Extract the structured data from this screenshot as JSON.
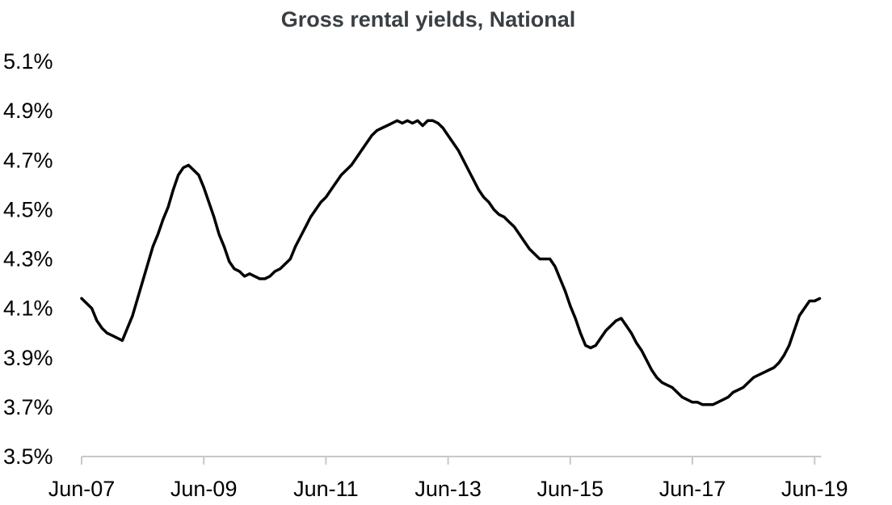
{
  "chart_data": {
    "type": "line",
    "title": "Gross rental yields, National",
    "xlabel": "",
    "ylabel": "",
    "ylim": [
      3.5,
      5.1
    ],
    "yticks": [
      "3.5%",
      "3.7%",
      "3.9%",
      "4.1%",
      "4.3%",
      "4.5%",
      "4.7%",
      "4.9%",
      "5.1%"
    ],
    "xticks": [
      "Jun-07",
      "Jun-09",
      "Jun-11",
      "Jun-13",
      "Jun-15",
      "Jun-17",
      "Jun-19"
    ],
    "grid": false,
    "legend": "none",
    "line_color": "#000000",
    "series": [
      {
        "x": [
          "2007-06",
          "2007-07",
          "2007-08",
          "2007-09",
          "2007-10",
          "2007-11",
          "2007-12",
          "2008-01",
          "2008-02",
          "2008-03",
          "2008-04",
          "2008-05",
          "2008-06",
          "2008-07",
          "2008-08",
          "2008-09",
          "2008-10",
          "2008-11",
          "2008-12",
          "2009-01",
          "2009-02",
          "2009-03",
          "2009-04",
          "2009-05",
          "2009-06",
          "2009-07",
          "2009-08",
          "2009-09",
          "2009-10",
          "2009-11",
          "2009-12",
          "2010-01",
          "2010-02",
          "2010-03",
          "2010-04",
          "2010-05",
          "2010-06",
          "2010-07",
          "2010-08",
          "2010-09",
          "2010-10",
          "2010-11",
          "2010-12",
          "2011-01",
          "2011-02",
          "2011-03",
          "2011-04",
          "2011-05",
          "2011-06",
          "2011-07",
          "2011-08",
          "2011-09",
          "2011-10",
          "2011-11",
          "2011-12",
          "2012-01",
          "2012-02",
          "2012-03",
          "2012-04",
          "2012-05",
          "2012-06",
          "2012-07",
          "2012-08",
          "2012-09",
          "2012-10",
          "2012-11",
          "2012-12",
          "2013-01",
          "2013-02",
          "2013-03",
          "2013-04",
          "2013-05",
          "2013-06",
          "2013-07",
          "2013-08",
          "2013-09",
          "2013-10",
          "2013-11",
          "2013-12",
          "2014-01",
          "2014-02",
          "2014-03",
          "2014-04",
          "2014-05",
          "2014-06",
          "2014-07",
          "2014-08",
          "2014-09",
          "2014-10",
          "2014-11",
          "2014-12",
          "2015-01",
          "2015-02",
          "2015-03",
          "2015-04",
          "2015-05",
          "2015-06",
          "2015-07",
          "2015-08",
          "2015-09",
          "2015-10",
          "2015-11",
          "2015-12",
          "2016-01",
          "2016-02",
          "2016-03",
          "2016-04",
          "2016-05",
          "2016-06",
          "2016-07",
          "2016-08",
          "2016-09",
          "2016-10",
          "2016-11",
          "2016-12",
          "2017-01",
          "2017-02",
          "2017-03",
          "2017-04",
          "2017-05",
          "2017-06",
          "2017-07",
          "2017-08",
          "2017-09",
          "2017-10",
          "2017-11",
          "2017-12",
          "2018-01",
          "2018-02",
          "2018-03",
          "2018-04",
          "2018-05",
          "2018-06",
          "2018-07",
          "2018-08",
          "2018-09",
          "2018-10",
          "2018-11",
          "2018-12",
          "2019-01",
          "2019-02",
          "2019-03",
          "2019-04",
          "2019-05",
          "2019-06",
          "2019-07"
        ],
        "values": [
          4.14,
          4.12,
          4.1,
          4.05,
          4.02,
          4.0,
          3.99,
          3.98,
          3.97,
          4.02,
          4.07,
          4.14,
          4.21,
          4.28,
          4.35,
          4.4,
          4.46,
          4.51,
          4.58,
          4.64,
          4.67,
          4.68,
          4.66,
          4.64,
          4.59,
          4.53,
          4.47,
          4.4,
          4.35,
          4.29,
          4.26,
          4.25,
          4.23,
          4.24,
          4.23,
          4.22,
          4.22,
          4.23,
          4.25,
          4.26,
          4.28,
          4.3,
          4.35,
          4.39,
          4.43,
          4.47,
          4.5,
          4.53,
          4.55,
          4.58,
          4.61,
          4.64,
          4.66,
          4.68,
          4.71,
          4.74,
          4.77,
          4.8,
          4.82,
          4.83,
          4.84,
          4.85,
          4.86,
          4.85,
          4.86,
          4.85,
          4.86,
          4.84,
          4.86,
          4.86,
          4.85,
          4.83,
          4.8,
          4.77,
          4.74,
          4.7,
          4.66,
          4.62,
          4.58,
          4.55,
          4.53,
          4.5,
          4.48,
          4.47,
          4.45,
          4.43,
          4.4,
          4.37,
          4.34,
          4.32,
          4.3,
          4.3,
          4.3,
          4.27,
          4.22,
          4.17,
          4.11,
          4.06,
          4.0,
          3.95,
          3.94,
          3.95,
          3.98,
          4.01,
          4.03,
          4.05,
          4.06,
          4.03,
          4.0,
          3.96,
          3.93,
          3.89,
          3.85,
          3.82,
          3.8,
          3.79,
          3.78,
          3.76,
          3.74,
          3.73,
          3.72,
          3.72,
          3.71,
          3.71,
          3.71,
          3.72,
          3.73,
          3.74,
          3.76,
          3.77,
          3.78,
          3.8,
          3.82,
          3.83,
          3.84,
          3.85,
          3.86,
          3.88,
          3.91,
          3.95,
          4.01,
          4.07,
          4.1,
          4.13,
          4.13,
          4.14
        ]
      }
    ]
  }
}
